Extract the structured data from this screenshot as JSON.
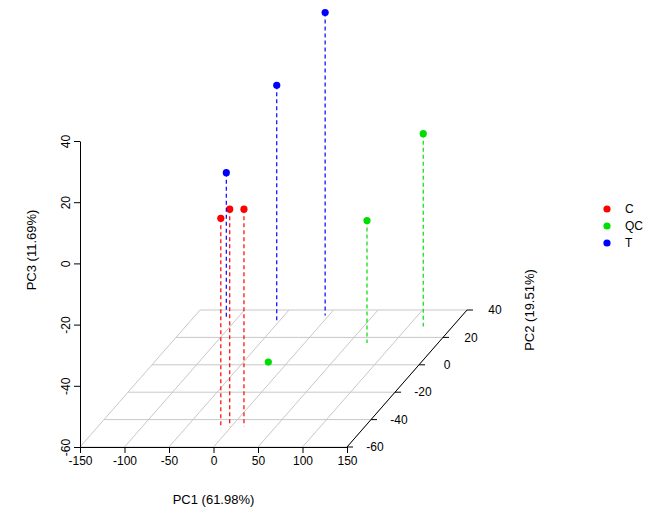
{
  "chart_data": {
    "type": "scatter3d",
    "x_label": "PC1 (61.98%)",
    "y_label": "PC2 (19.51%)",
    "z_label": "PC3 (11.69%)",
    "xlim": [
      -150,
      150
    ],
    "xticks": [
      -150,
      -100,
      -50,
      0,
      50,
      100,
      150
    ],
    "ylim": [
      -60,
      40
    ],
    "yticks": [
      -60,
      -40,
      -20,
      0,
      20,
      40
    ],
    "zlim": [
      -60,
      40
    ],
    "zticks": [
      -60,
      -40,
      -20,
      0,
      20,
      40
    ],
    "grid": true,
    "legend": "right",
    "marker": "circle",
    "line_style": "dashed",
    "series": [
      {
        "name": "C",
        "color": "#ff0000",
        "x": [
          -12,
          -2,
          14
        ],
        "y": [
          -45,
          -45,
          -45
        ],
        "z": [
          8,
          11,
          11
        ]
      },
      {
        "name": "QC",
        "color": "#00dd00",
        "x": [
          117,
          70,
          -22
        ],
        "y": [
          28,
          16,
          2
        ],
        "z": [
          3,
          -20,
          -60
        ]
      },
      {
        "name": "T",
        "color": "#0000ff",
        "x": [
          -111,
          -53,
          -4
        ],
        "y": [
          33,
          32,
          36
        ],
        "z": [
          -12,
          17,
          39
        ]
      }
    ]
  }
}
